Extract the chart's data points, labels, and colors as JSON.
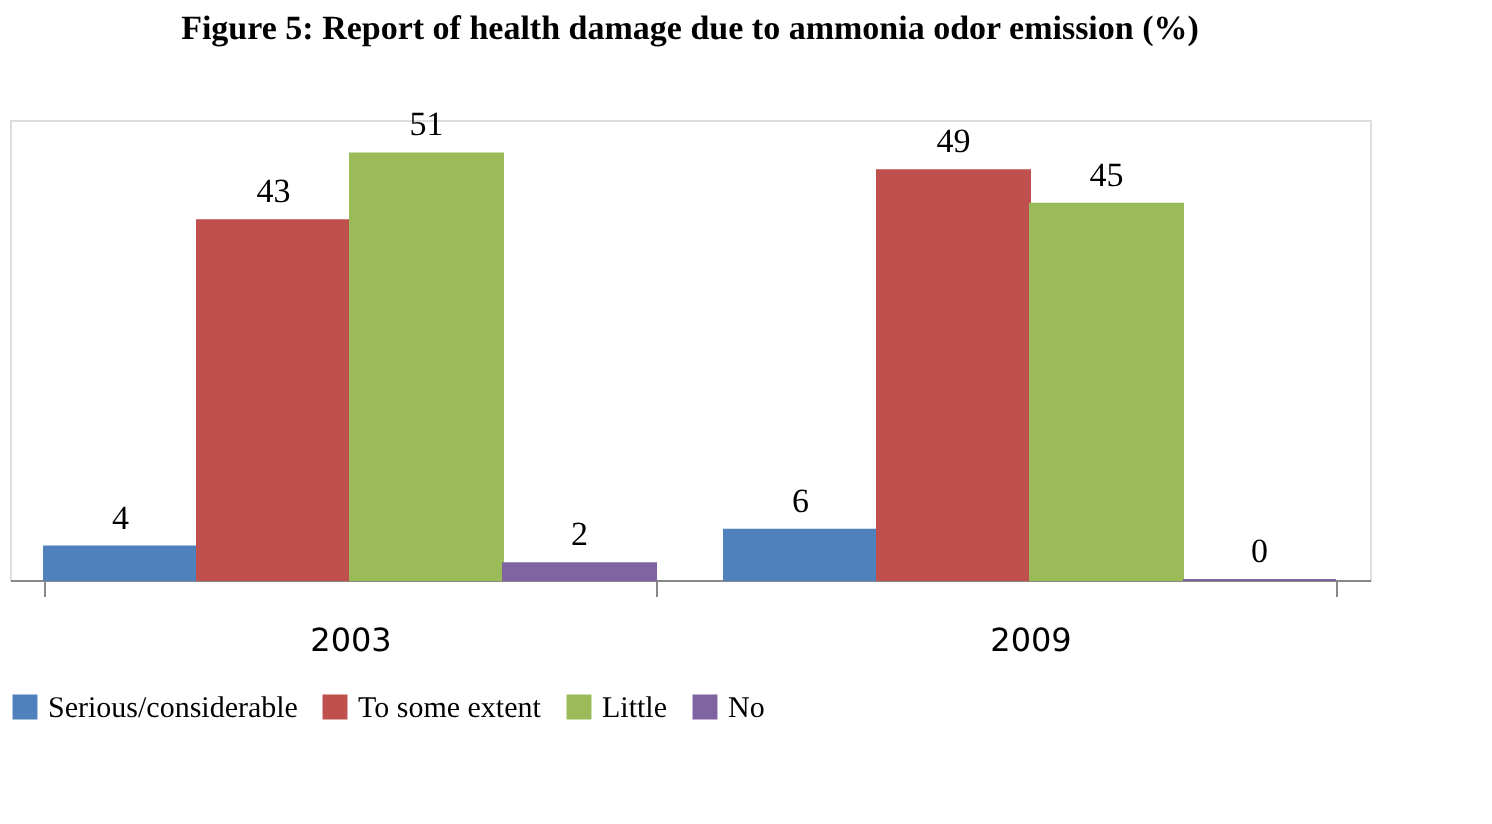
{
  "chart_data": {
    "type": "bar",
    "title": "Figure 5: Report of health damage due to ammonia odor emission (%)",
    "categories": [
      "2003",
      "2009"
    ],
    "series": [
      {
        "name": "Serious/considerable",
        "color": "#4f81bd",
        "values": [
          4,
          6
        ]
      },
      {
        "name": "To some extent",
        "color": "#c0504d",
        "values": [
          43,
          49
        ]
      },
      {
        "name": "Little",
        "color": "#9bbb59",
        "values": [
          51,
          45
        ]
      },
      {
        "name": "No",
        "color": "#8064a2",
        "values": [
          2,
          0
        ]
      }
    ],
    "data_labels": true,
    "legend": "bottom",
    "grid": false
  }
}
